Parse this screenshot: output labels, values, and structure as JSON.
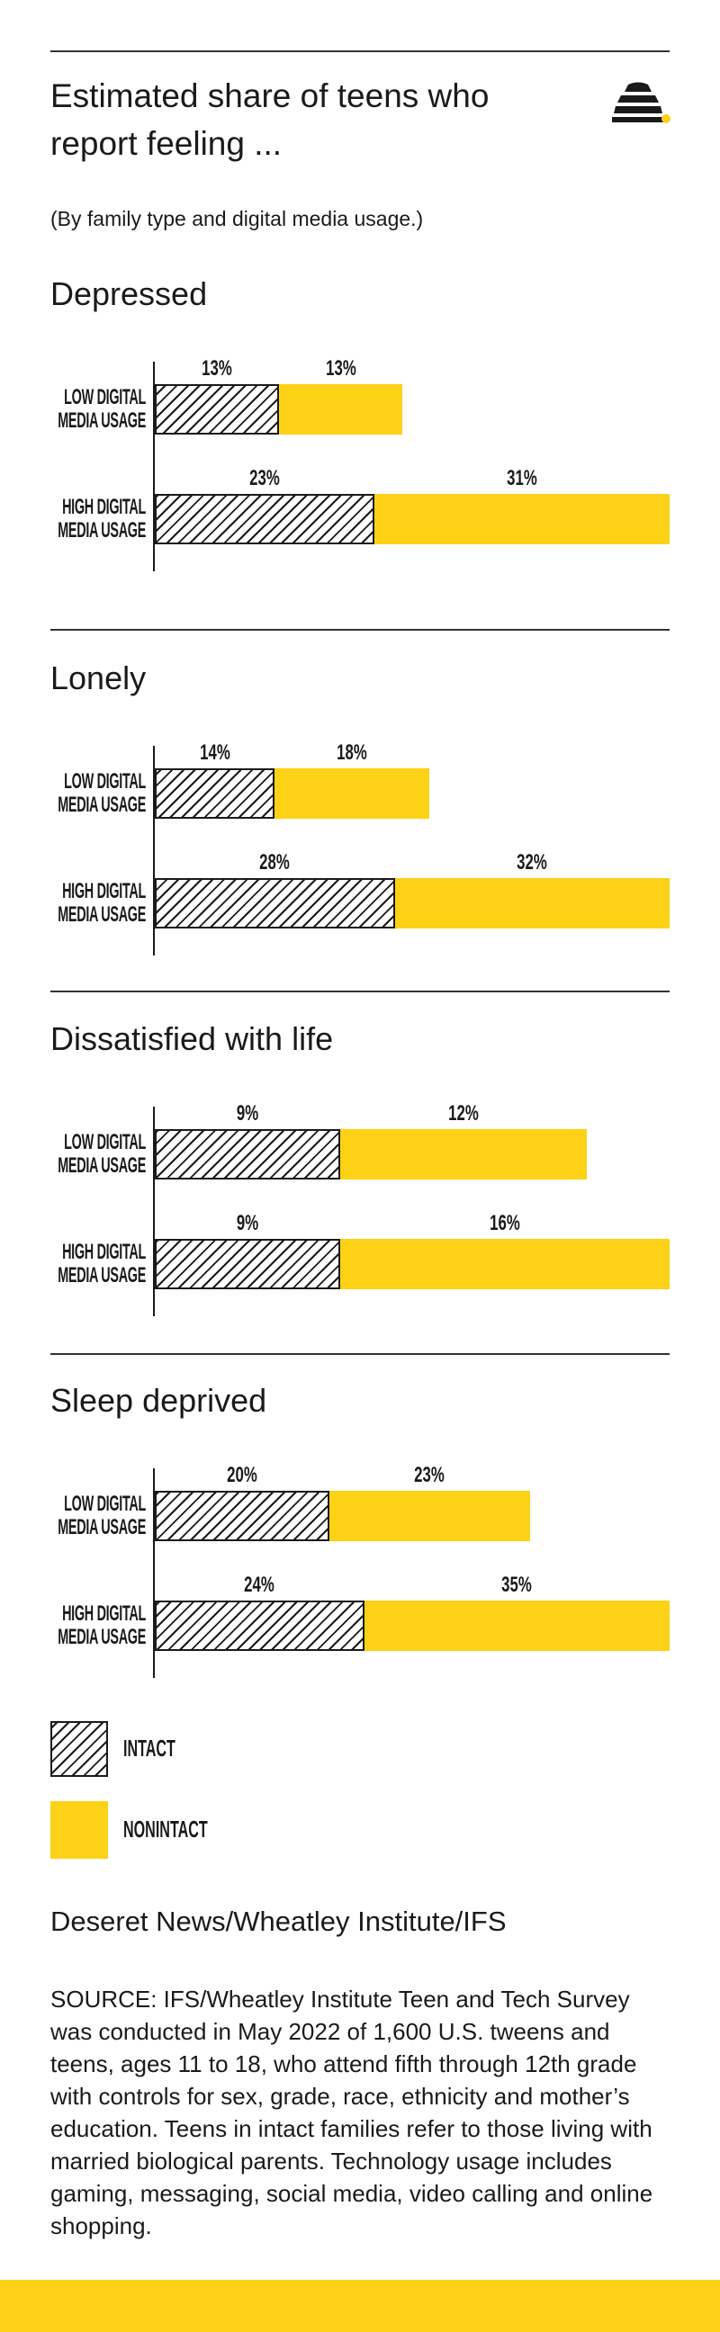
{
  "title": "Estimated share of teens who report feeling ...",
  "subtitle": "(By family type and digital media usage.)",
  "credit": "Deseret News/Wheatley Institute/IFS",
  "source": "SOURCE: IFS/Wheatley Institute Teen and Tech Survey was conducted in May 2022 of 1,600 U.S. tweens and teens, ages 11 to 18, who attend fifth through 12th grade with controls for sex, grade, race, ethnicity and mother’s education. Teens in intact families refer to those living with married biological parents. Technology usage includes gaming, messaging, social media, video calling and online shopping.",
  "chart_data": [
    {
      "type": "bar",
      "orientation": "horizontal",
      "stacked": true,
      "title": "Depressed",
      "categories": [
        "LOW DIGITAL MEDIA USAGE",
        "HIGH DIGITAL MEDIA USAGE"
      ],
      "xlim": [
        0,
        54
      ],
      "series": [
        {
          "name": "INTACT",
          "color": "#1a1a1a",
          "pattern": "hatch",
          "values": [
            13,
            23
          ],
          "value_labels": [
            "13%",
            "23%"
          ]
        },
        {
          "name": "NONINTACT",
          "color": "#fcd116",
          "values": [
            13,
            31
          ],
          "value_labels": [
            "13%",
            "31%"
          ]
        }
      ]
    },
    {
      "type": "bar",
      "orientation": "horizontal",
      "stacked": true,
      "title": "Lonely",
      "categories": [
        "LOW DIGITAL MEDIA USAGE",
        "HIGH DIGITAL MEDIA USAGE"
      ],
      "xlim": [
        0,
        60
      ],
      "series": [
        {
          "name": "INTACT",
          "color": "#1a1a1a",
          "pattern": "hatch",
          "values": [
            14,
            28
          ],
          "value_labels": [
            "14%",
            "28%"
          ]
        },
        {
          "name": "NONINTACT",
          "color": "#fcd116",
          "values": [
            18,
            32
          ],
          "value_labels": [
            "18%",
            "32%"
          ]
        }
      ]
    },
    {
      "type": "bar",
      "orientation": "horizontal",
      "stacked": true,
      "title": "Dissatisfied with life",
      "categories": [
        "LOW DIGITAL MEDIA USAGE",
        "HIGH DIGITAL MEDIA USAGE"
      ],
      "xlim": [
        0,
        25
      ],
      "series": [
        {
          "name": "INTACT",
          "color": "#1a1a1a",
          "pattern": "hatch",
          "values": [
            9,
            9
          ],
          "value_labels": [
            "9%",
            "9%"
          ]
        },
        {
          "name": "NONINTACT",
          "color": "#fcd116",
          "values": [
            12,
            16
          ],
          "value_labels": [
            "12%",
            "16%"
          ]
        }
      ]
    },
    {
      "type": "bar",
      "orientation": "horizontal",
      "stacked": true,
      "title": "Sleep deprived",
      "categories": [
        "LOW DIGITAL MEDIA USAGE",
        "HIGH DIGITAL MEDIA USAGE"
      ],
      "xlim": [
        0,
        59
      ],
      "series": [
        {
          "name": "INTACT",
          "color": "#1a1a1a",
          "pattern": "hatch",
          "values": [
            20,
            24
          ],
          "value_labels": [
            "20%",
            "24%"
          ]
        },
        {
          "name": "NONINTACT",
          "color": "#fcd116",
          "values": [
            23,
            35
          ],
          "value_labels": [
            "23%",
            "35%"
          ]
        }
      ]
    }
  ]
}
